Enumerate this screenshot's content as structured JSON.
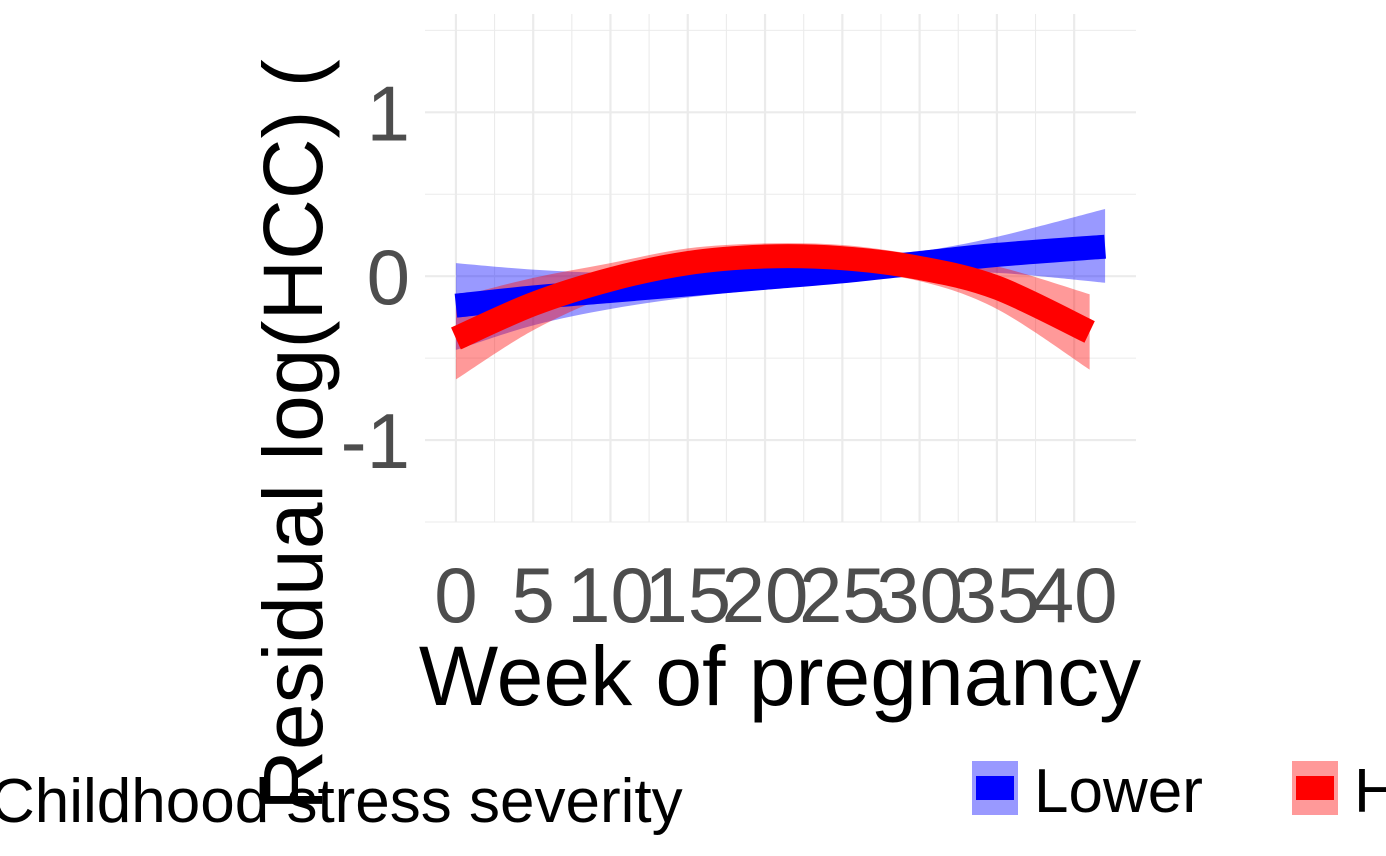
{
  "chart_data": {
    "type": "line",
    "xlabel": "Week of pregnancy",
    "ylabel": "Residual log(HCC) (",
    "xlim": [
      -2,
      44
    ],
    "ylim": [
      -1.5,
      1.6
    ],
    "x_ticks": [
      0,
      5,
      10,
      15,
      20,
      25,
      30,
      35,
      40
    ],
    "x_tick_labels": [
      "0",
      "5",
      "10",
      "15",
      "20",
      "25",
      "30",
      "35",
      "40"
    ],
    "y_ticks": [
      -1,
      0,
      1
    ],
    "y_tick_labels": [
      "-1",
      "0",
      "1"
    ],
    "grid": true,
    "legend": {
      "title": "Childhood stress severity",
      "position": "bottom",
      "entries": [
        "Lower",
        "H"
      ]
    },
    "series": [
      {
        "name": "Lower",
        "color": "#0000ff",
        "x": [
          0,
          5,
          10,
          15,
          20,
          25,
          30,
          35,
          42
        ],
        "y": [
          -0.18,
          -0.13,
          -0.09,
          -0.05,
          -0.01,
          0.03,
          0.08,
          0.13,
          0.18
        ],
        "lower": [
          -0.45,
          -0.3,
          -0.2,
          -0.13,
          -0.08,
          -0.03,
          0.01,
          0.02,
          -0.04
        ],
        "upper": [
          0.08,
          0.04,
          0.02,
          0.03,
          0.06,
          0.09,
          0.15,
          0.24,
          0.41
        ]
      },
      {
        "name": "H",
        "color": "#ff0000",
        "x": [
          0,
          5,
          10,
          15,
          20,
          25,
          30,
          35,
          41
        ],
        "y": [
          -0.38,
          -0.17,
          -0.02,
          0.08,
          0.12,
          0.11,
          0.05,
          -0.07,
          -0.34
        ],
        "lower": [
          -0.63,
          -0.33,
          -0.12,
          -0.01,
          0.04,
          0.03,
          -0.03,
          -0.2,
          -0.57
        ],
        "upper": [
          -0.13,
          -0.01,
          0.08,
          0.17,
          0.2,
          0.19,
          0.13,
          0.06,
          -0.11
        ]
      }
    ]
  }
}
